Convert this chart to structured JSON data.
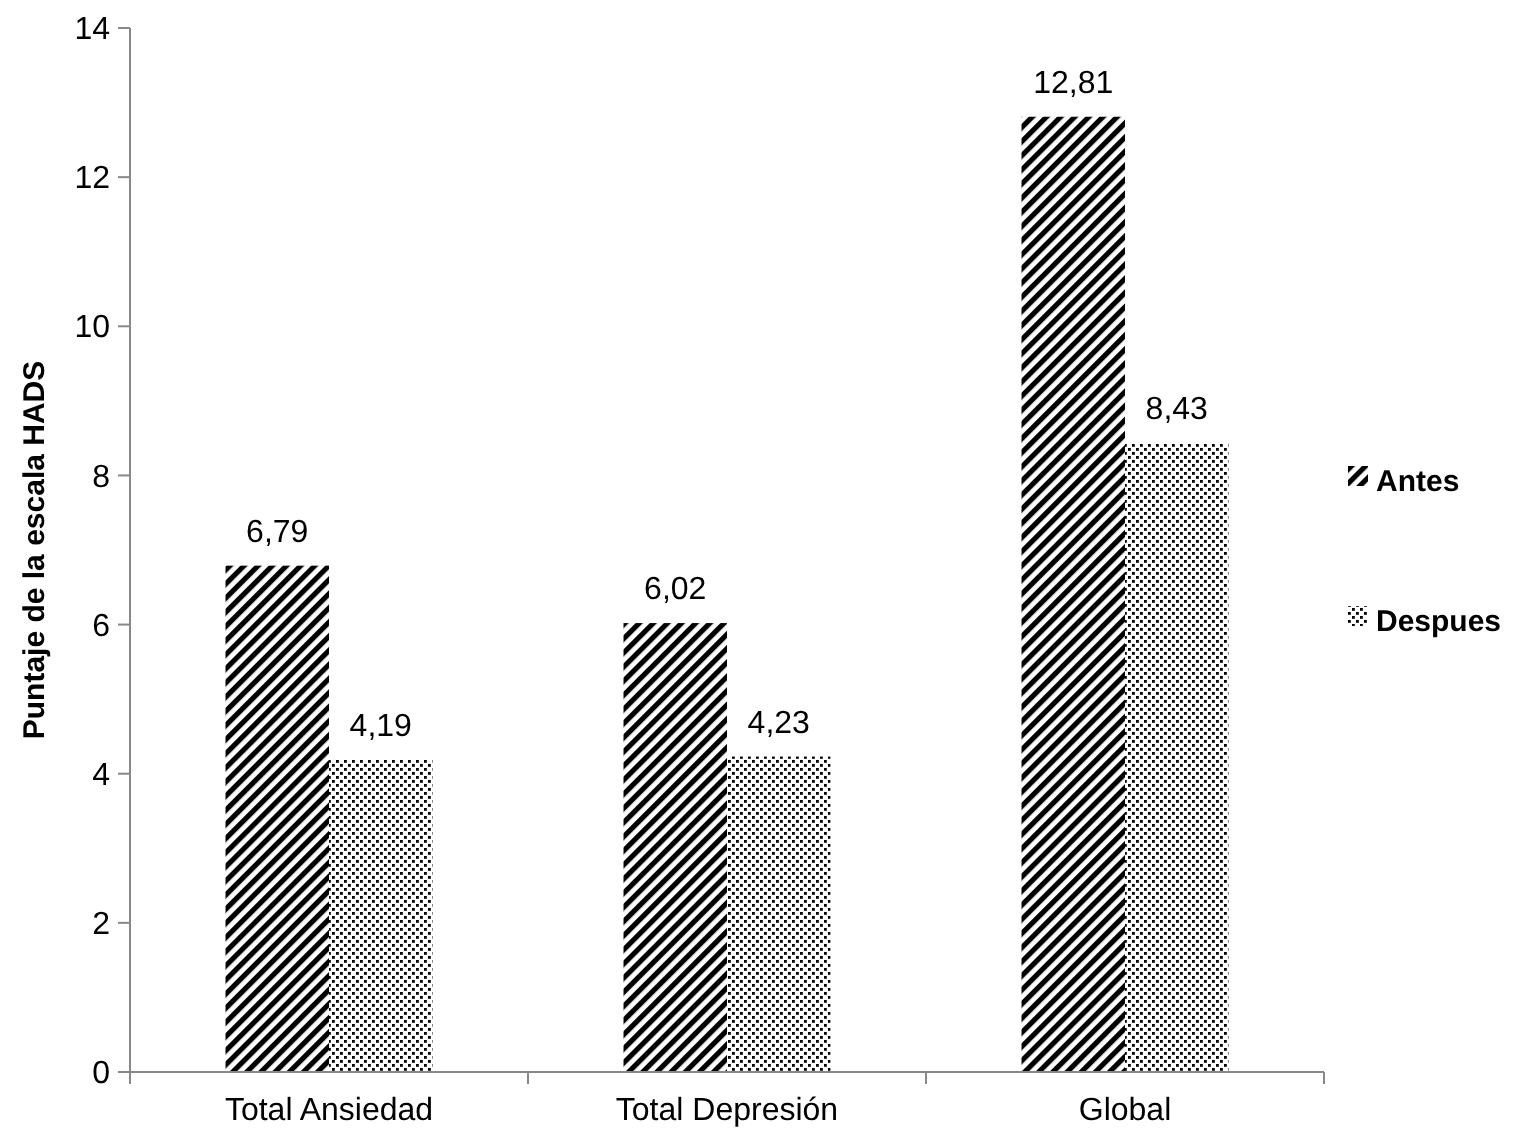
{
  "chart_data": {
    "type": "bar",
    "ylabel": "Puntaje de la escala HADS",
    "categories": [
      "Total Ansiedad",
      "Total Depresión",
      "Global"
    ],
    "series": [
      {
        "name": "Antes",
        "color": "#000000",
        "values": [
          6.79,
          6.02,
          12.81
        ],
        "value_labels": [
          "6,79",
          "6,02",
          "12,81"
        ]
      },
      {
        "name": "Despues",
        "color": "#000000",
        "values": [
          4.19,
          4.23,
          8.43
        ],
        "value_labels": [
          "4,19",
          "4,23",
          "8,43"
        ]
      }
    ],
    "ylim": [
      0,
      14
    ],
    "yticks": [
      0,
      2,
      4,
      6,
      8,
      10,
      12,
      14
    ],
    "grid": false,
    "legend": "right"
  }
}
